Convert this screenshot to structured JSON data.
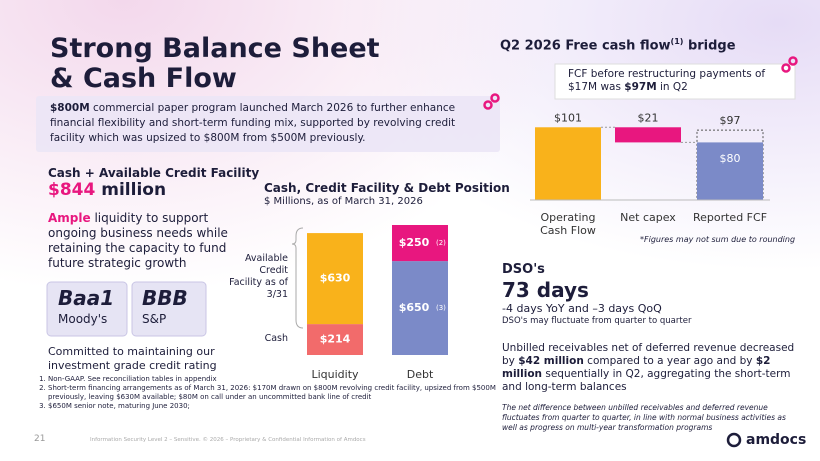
{
  "header": {
    "title": "Strong Balance Sheet & Cash Flow"
  },
  "callout": {
    "bold": "$800M",
    "text": " commercial paper program launched March 2026 to further enhance financial flexibility and short-term funding mix, supported by revolving credit facility which was upsized to $800M from $500M previously."
  },
  "liquidity": {
    "heading": "Cash + Available Credit Facility",
    "amount": "$844",
    "unit": " million",
    "bold": "Ample",
    "text": " liquidity to support ongoing business needs while retaining the capacity to fund future strategic growth"
  },
  "ratings": [
    {
      "grade": "Baa1",
      "agency": "Moody's"
    },
    {
      "grade": "BBB",
      "agency": "S&P"
    }
  ],
  "commitment": "Committed to maintaining our investment grade credit rating",
  "footnotes": [
    "Non-GAAP. See reconciliation tables in appendix",
    "Short-term financing arrangements as of March 31, 2026: $170M drawn on $800M revolving credit facility, upsized from $500M previously, leaving $630M available; $80M on call under an uncommitted bank line of credit",
    "$650M senior note, maturing June 2030;"
  ],
  "footer": {
    "page": "21",
    "text": "Information Security Level 2 – Sensitive. © 2026 – Proprietary & Confidential Information of Amdocs",
    "logo": "amdocs"
  },
  "dso": {
    "heading": "DSO's",
    "value": "73 days",
    "change": "-4 days YoY and –3 days QoQ",
    "note": "DSO's may fluctuate from quarter to quarter",
    "paragraph": [
      "Unbilled receivables net of deferred revenue decreased by ",
      "$42 million",
      " compared to a year ago and by ",
      "$2 million",
      " sequentially in Q2, aggregating the short-term and long-term balances"
    ],
    "italic": "The net difference between unbilled receivables and deferred revenue fluctuates from quarter to quarter, in line with normal business activities as well as progress on multi-year transformation programs"
  },
  "chart_data": [
    {
      "type": "stacked_bar",
      "title": "Cash, Credit Facility & Debt Position",
      "subtitle": "$ Millions, as of March 31, 2026",
      "categories": [
        "Liquidity",
        "Debt"
      ],
      "series": [
        {
          "name": "Cash",
          "color": "#f26b6b",
          "values": [
            214,
            null
          ],
          "value_labels": [
            "$214",
            null
          ]
        },
        {
          "name": "Available Credit Facility as of 3/31",
          "color": "#f9b21b",
          "values": [
            630,
            null
          ],
          "value_labels": [
            "$630",
            null
          ]
        },
        {
          "color": "#7b8ac8",
          "values": [
            null,
            650
          ],
          "value_labels": [
            null,
            "$650"
          ],
          "label_notes": [
            null,
            "(3)"
          ]
        },
        {
          "color": "#e8177f",
          "values": [
            null,
            250
          ],
          "value_labels": [
            null,
            "$250"
          ],
          "label_notes": [
            null,
            "(2)"
          ]
        }
      ]
    },
    {
      "type": "waterfall",
      "title": "Q2 2026 Free cash flow",
      "title_note": "(1)",
      "title_end": " bridge",
      "note": {
        "text": "FCF before restructuring payments of $17M was ",
        "bold": "$97M",
        "end": " in Q2"
      },
      "categories": [
        "Operating Cash Flow",
        "Net capex",
        "Reported FCF"
      ],
      "values": [
        101,
        -21,
        97
      ],
      "value_labels": [
        "$101",
        "$21",
        "$97"
      ],
      "colors": [
        "#f9b21b",
        "#e8177f",
        "#7b8ac8"
      ],
      "inner": {
        "value": 80,
        "label": "$80"
      },
      "footnote": "*Figures may not sum due to rounding"
    }
  ]
}
